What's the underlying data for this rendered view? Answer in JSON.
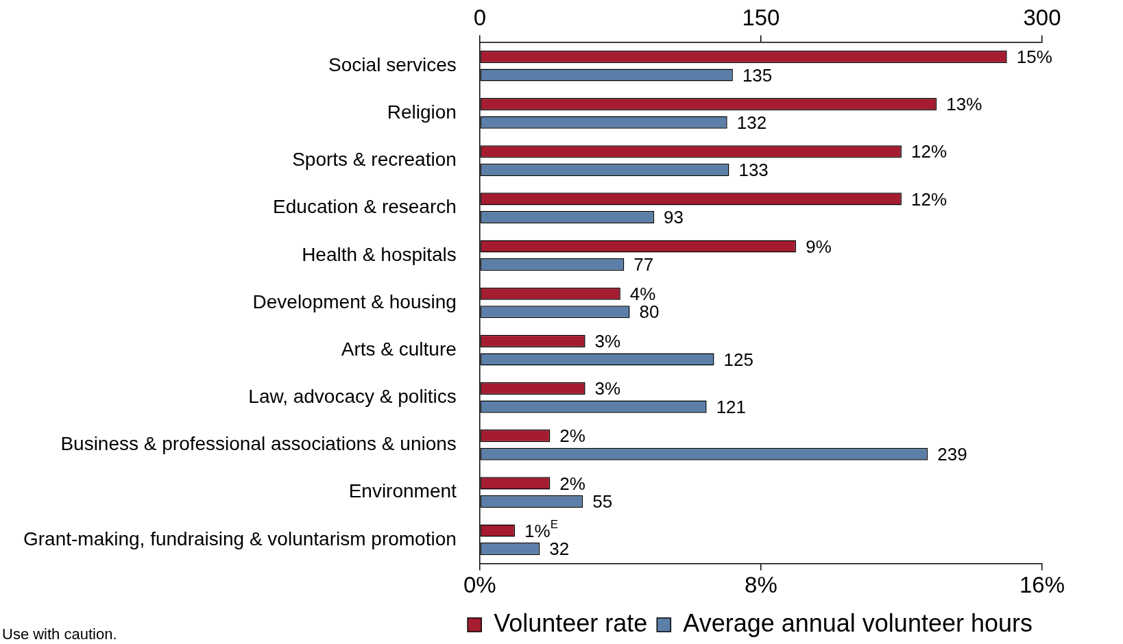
{
  "chart_data": {
    "type": "bar",
    "orientation": "horizontal",
    "categories": [
      "Social services",
      "Religion",
      "Sports & recreation",
      "Education & research",
      "Health & hospitals",
      "Development & housing",
      "Arts & culture",
      "Law, advocacy & politics",
      "Business & professional associations & unions",
      "Environment",
      "Grant-making, fundraising & voluntarism promotion"
    ],
    "series": [
      {
        "name": "Volunteer rate",
        "color": "#a51c30",
        "values": [
          15,
          13,
          12,
          12,
          9,
          4,
          3,
          3,
          2,
          2,
          1
        ],
        "value_labels": [
          "15%",
          "13%",
          "12%",
          "12%",
          "9%",
          "4%",
          "3%",
          "3%",
          "2%",
          "2%",
          "1%$^{E}$"
        ]
      },
      {
        "name": "Average annual volunteer hours",
        "color": "#5b7fa8",
        "axis": "x2",
        "values": [
          135,
          132,
          133,
          93,
          77,
          80,
          125,
          121,
          239,
          55,
          32
        ],
        "value_labels": [
          "135",
          "132",
          "133",
          "93",
          "77",
          "80",
          "125",
          "121",
          "239",
          "55",
          "32"
        ]
      }
    ],
    "xlim": [
      0,
      16
    ],
    "xticks": [
      {
        "value": 0,
        "label": "0%"
      },
      {
        "value": 8,
        "label": "8%"
      },
      {
        "value": 16,
        "label": "16%"
      }
    ],
    "x2lim": [
      0,
      300
    ],
    "x2ticks": [
      0,
      150,
      300
    ],
    "grid": false,
    "legend": "bottom",
    "annotations": [
      "Use with caution."
    ]
  }
}
